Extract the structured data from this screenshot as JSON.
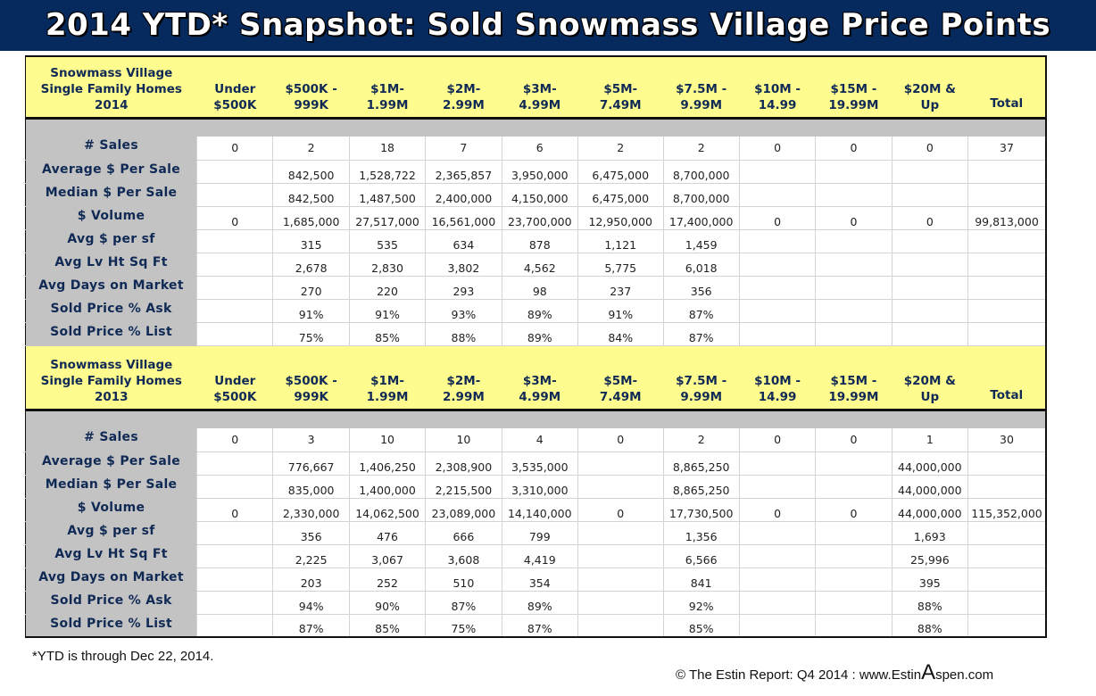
{
  "title": "2014 YTD* Snapshot: Sold Snowmass Village Price Points",
  "columns": [
    "Under\n$500K",
    "$500K -\n999K",
    "$1M-\n1.99M",
    "$2M-\n2.99M",
    "$3M-\n4.99M",
    "$5M-\n7.49M",
    "$7.5M -\n9.99M",
    "$10M -\n14.99",
    "$15M -\n19.99M",
    "$20M &\nUp",
    "Total"
  ],
  "row_labels": [
    "# Sales",
    "Average $ Per Sale",
    "Median $ Per Sale",
    "$ Volume",
    "Avg $ per sf",
    "Avg Lv Ht Sq Ft",
    "Avg Days on Market",
    "Sold Price % Ask",
    "Sold Price % List"
  ],
  "tables": [
    {
      "label": "Snowmass Village\nSingle Family Homes\n2014",
      "rows": [
        [
          "0",
          "2",
          "18",
          "7",
          "6",
          "2",
          "2",
          "0",
          "0",
          "0",
          "37"
        ],
        [
          "",
          "842,500",
          "1,528,722",
          "2,365,857",
          "3,950,000",
          "6,475,000",
          "8,700,000",
          "",
          "",
          "",
          ""
        ],
        [
          "",
          "842,500",
          "1,487,500",
          "2,400,000",
          "4,150,000",
          "6,475,000",
          "8,700,000",
          "",
          "",
          "",
          ""
        ],
        [
          "0",
          "1,685,000",
          "27,517,000",
          "16,561,000",
          "23,700,000",
          "12,950,000",
          "17,400,000",
          "0",
          "0",
          "0",
          "99,813,000"
        ],
        [
          "",
          "315",
          "535",
          "634",
          "878",
          "1,121",
          "1,459",
          "",
          "",
          "",
          ""
        ],
        [
          "",
          "2,678",
          "2,830",
          "3,802",
          "4,562",
          "5,775",
          "6,018",
          "",
          "",
          "",
          ""
        ],
        [
          "",
          "270",
          "220",
          "293",
          "98",
          "237",
          "356",
          "",
          "",
          "",
          ""
        ],
        [
          "",
          "91%",
          "91%",
          "93%",
          "89%",
          "91%",
          "87%",
          "",
          "",
          "",
          ""
        ],
        [
          "",
          "75%",
          "85%",
          "88%",
          "89%",
          "84%",
          "87%",
          "",
          "",
          "",
          ""
        ]
      ]
    },
    {
      "label": "Snowmass Village\nSingle Family Homes\n2013",
      "rows": [
        [
          "0",
          "3",
          "10",
          "10",
          "4",
          "0",
          "2",
          "0",
          "0",
          "1",
          "30"
        ],
        [
          "",
          "776,667",
          "1,406,250",
          "2,308,900",
          "3,535,000",
          "",
          "8,865,250",
          "",
          "",
          "44,000,000",
          ""
        ],
        [
          "",
          "835,000",
          "1,400,000",
          "2,215,500",
          "3,310,000",
          "",
          "8,865,250",
          "",
          "",
          "44,000,000",
          ""
        ],
        [
          "0",
          "2,330,000",
          "14,062,500",
          "23,089,000",
          "14,140,000",
          "0",
          "17,730,500",
          "0",
          "0",
          "44,000,000",
          "115,352,000"
        ],
        [
          "",
          "356",
          "476",
          "666",
          "799",
          "",
          "1,356",
          "",
          "",
          "1,693",
          ""
        ],
        [
          "",
          "2,225",
          "3,067",
          "3,608",
          "4,419",
          "",
          "6,566",
          "",
          "",
          "25,996",
          ""
        ],
        [
          "",
          "203",
          "252",
          "510",
          "354",
          "",
          "841",
          "",
          "",
          "395",
          ""
        ],
        [
          "",
          "94%",
          "90%",
          "87%",
          "89%",
          "",
          "92%",
          "",
          "",
          "88%",
          ""
        ],
        [
          "",
          "87%",
          "85%",
          "75%",
          "87%",
          "",
          "85%",
          "",
          "",
          "88%",
          ""
        ]
      ]
    }
  ],
  "footer": {
    "note": "*YTD is through Dec 22, 2014.",
    "copyright_prefix": "© The Estin Report: Q4 2014 : www.Estin",
    "copyright_big": "A",
    "copyright_suffix": "spen.com"
  },
  "colors": {
    "banner": "#062a5e",
    "header_yellow": "#fffc8f",
    "label_gray": "#c3c3c3",
    "header_text": "#102a55"
  }
}
